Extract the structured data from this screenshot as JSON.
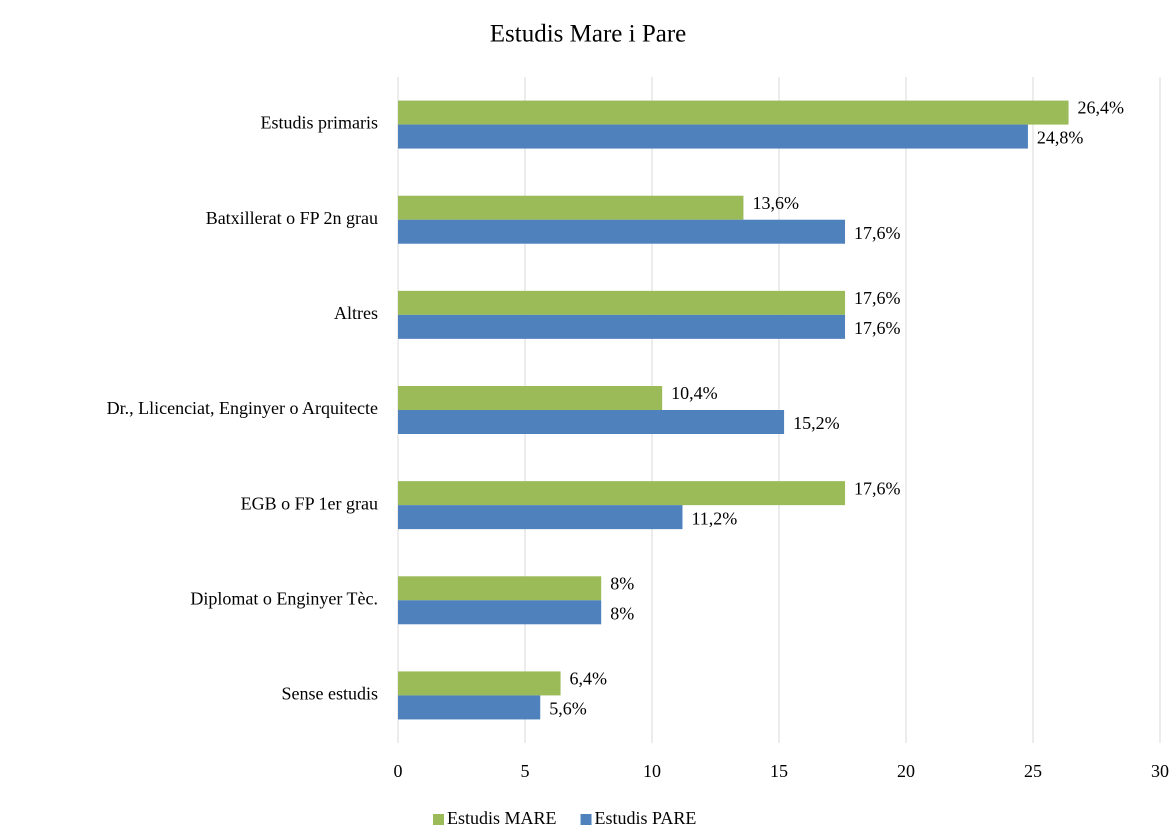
{
  "chart_data": {
    "type": "bar",
    "orientation": "horizontal",
    "title": "Estudis Mare i Pare",
    "categories": [
      "Estudis primaris",
      "Batxillerat o FP 2n grau",
      "Altres",
      "Dr., Llicenciat, Enginyer o Arquitecte",
      "EGB o FP 1er grau",
      "Diplomat o Enginyer Tèc.",
      "Sense estudis"
    ],
    "series": [
      {
        "name": "Estudis MARE",
        "color": "#9bbb59",
        "values": [
          26.4,
          13.6,
          17.6,
          10.4,
          17.6,
          8,
          6.4
        ],
        "value_labels": [
          "26,4%",
          "13,6%",
          "17,6%",
          "10,4%",
          "17,6%",
          "8%",
          "6,4%"
        ]
      },
      {
        "name": "Estudis PARE",
        "color": "#4f81bd",
        "values": [
          24.8,
          17.6,
          17.6,
          15.2,
          11.2,
          8,
          5.6
        ],
        "value_labels": [
          "24,8%",
          "17,6%",
          "17,6%",
          "15,2%",
          "11,2%",
          "8%",
          "5,6%"
        ]
      }
    ],
    "xlim": [
      0,
      30
    ],
    "xticks": [
      0,
      5,
      10,
      15,
      20,
      25,
      30
    ],
    "grid": true,
    "legend": "bottom"
  }
}
